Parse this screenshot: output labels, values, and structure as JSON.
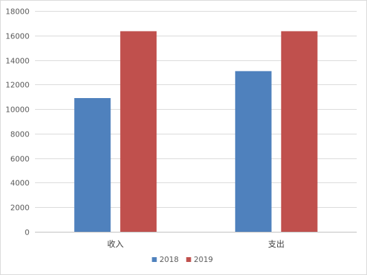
{
  "chart_data": {
    "type": "bar",
    "categories": [
      "收入",
      "支出"
    ],
    "series": [
      {
        "name": "2018",
        "color": "#4f81bd",
        "values": [
          10900,
          13100
        ]
      },
      {
        "name": "2019",
        "color": "#c0504d",
        "values": [
          16350,
          16350
        ]
      }
    ],
    "ylim": [
      0,
      18000
    ],
    "yticks": [
      0,
      2000,
      4000,
      6000,
      8000,
      10000,
      12000,
      14000,
      16000,
      18000
    ],
    "grid": true,
    "legend": "bottom",
    "title": "",
    "xlabel": "",
    "ylabel": ""
  }
}
